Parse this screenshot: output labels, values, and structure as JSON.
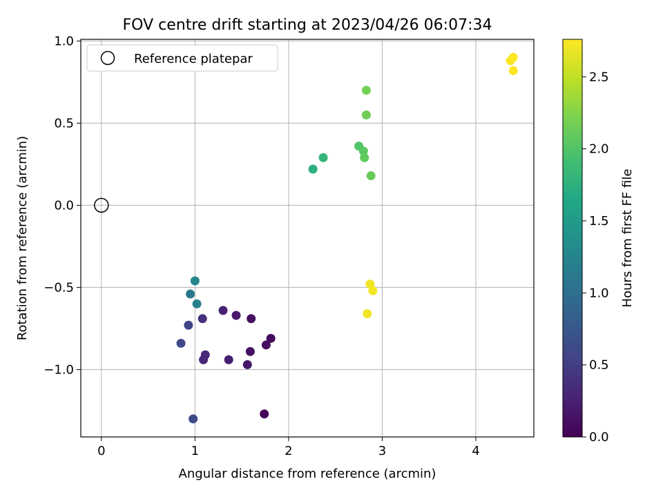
{
  "chart_data": {
    "type": "scatter",
    "title": "FOV centre drift starting at 2023/04/26 06:07:34",
    "xlabel": "Angular distance from reference (arcmin)",
    "ylabel": "Rotation from reference (arcmin)",
    "xlim": [
      -0.22,
      4.62
    ],
    "ylim": [
      -1.41,
      1.01
    ],
    "xticks": [
      0,
      1,
      2,
      3,
      4
    ],
    "xtick_labels": [
      "0",
      "1",
      "2",
      "3",
      "4"
    ],
    "yticks": [
      1.0,
      0.5,
      0.0,
      -0.5,
      -1.0
    ],
    "ytick_labels": [
      "1.0",
      "0.5",
      "0.0",
      "−0.5",
      "−1.0"
    ],
    "grid": true,
    "legend": {
      "position": "top-left",
      "entries": [
        "Reference platepar"
      ]
    },
    "reference": {
      "x": 0.0,
      "y": 0.0,
      "marker": "hollow-circle"
    },
    "colorbar": {
      "label": "Hours from first FF file",
      "min": 0.0,
      "max": 2.76,
      "ticks": [
        0.0,
        0.5,
        1.0,
        1.5,
        2.0,
        2.5
      ],
      "tick_labels": [
        "0.0",
        "0.5",
        "1.0",
        "1.5",
        "2.0",
        "2.5"
      ],
      "colormap": "viridis"
    },
    "points": [
      {
        "x": 1.74,
        "y": -1.27,
        "c": 0.03
      },
      {
        "x": 1.81,
        "y": -0.81,
        "c": 0.06
      },
      {
        "x": 1.76,
        "y": -0.85,
        "c": 0.09
      },
      {
        "x": 1.6,
        "y": -0.69,
        "c": 0.11
      },
      {
        "x": 1.59,
        "y": -0.89,
        "c": 0.13
      },
      {
        "x": 1.56,
        "y": -0.97,
        "c": 0.16
      },
      {
        "x": 1.44,
        "y": -0.67,
        "c": 0.2
      },
      {
        "x": 1.36,
        "y": -0.94,
        "c": 0.24
      },
      {
        "x": 1.3,
        "y": -0.64,
        "c": 0.27
      },
      {
        "x": 1.09,
        "y": -0.94,
        "c": 0.3
      },
      {
        "x": 1.11,
        "y": -0.91,
        "c": 0.33
      },
      {
        "x": 1.08,
        "y": -0.69,
        "c": 0.38
      },
      {
        "x": 0.93,
        "y": -0.73,
        "c": 0.55
      },
      {
        "x": 0.85,
        "y": -0.84,
        "c": 0.6
      },
      {
        "x": 0.98,
        "y": -1.3,
        "c": 0.62
      },
      {
        "x": 0.95,
        "y": -0.54,
        "c": 1.1
      },
      {
        "x": 1.02,
        "y": -0.6,
        "c": 1.2
      },
      {
        "x": 1.0,
        "y": -0.46,
        "c": 1.25
      },
      {
        "x": 2.26,
        "y": 0.22,
        "c": 1.75
      },
      {
        "x": 2.37,
        "y": 0.29,
        "c": 1.8
      },
      {
        "x": 2.75,
        "y": 0.36,
        "c": 2.0
      },
      {
        "x": 2.8,
        "y": 0.33,
        "c": 2.05
      },
      {
        "x": 2.81,
        "y": 0.29,
        "c": 2.08
      },
      {
        "x": 2.88,
        "y": 0.18,
        "c": 2.12
      },
      {
        "x": 2.83,
        "y": 0.55,
        "c": 2.15
      },
      {
        "x": 2.83,
        "y": 0.7,
        "c": 2.18
      },
      {
        "x": 2.84,
        "y": -0.66,
        "c": 2.7
      },
      {
        "x": 2.87,
        "y": -0.48,
        "c": 2.7
      },
      {
        "x": 2.9,
        "y": -0.52,
        "c": 2.72
      },
      {
        "x": 4.37,
        "y": 0.88,
        "c": 2.74
      },
      {
        "x": 4.4,
        "y": 0.9,
        "c": 2.75
      },
      {
        "x": 4.4,
        "y": 0.82,
        "c": 2.76
      }
    ]
  }
}
